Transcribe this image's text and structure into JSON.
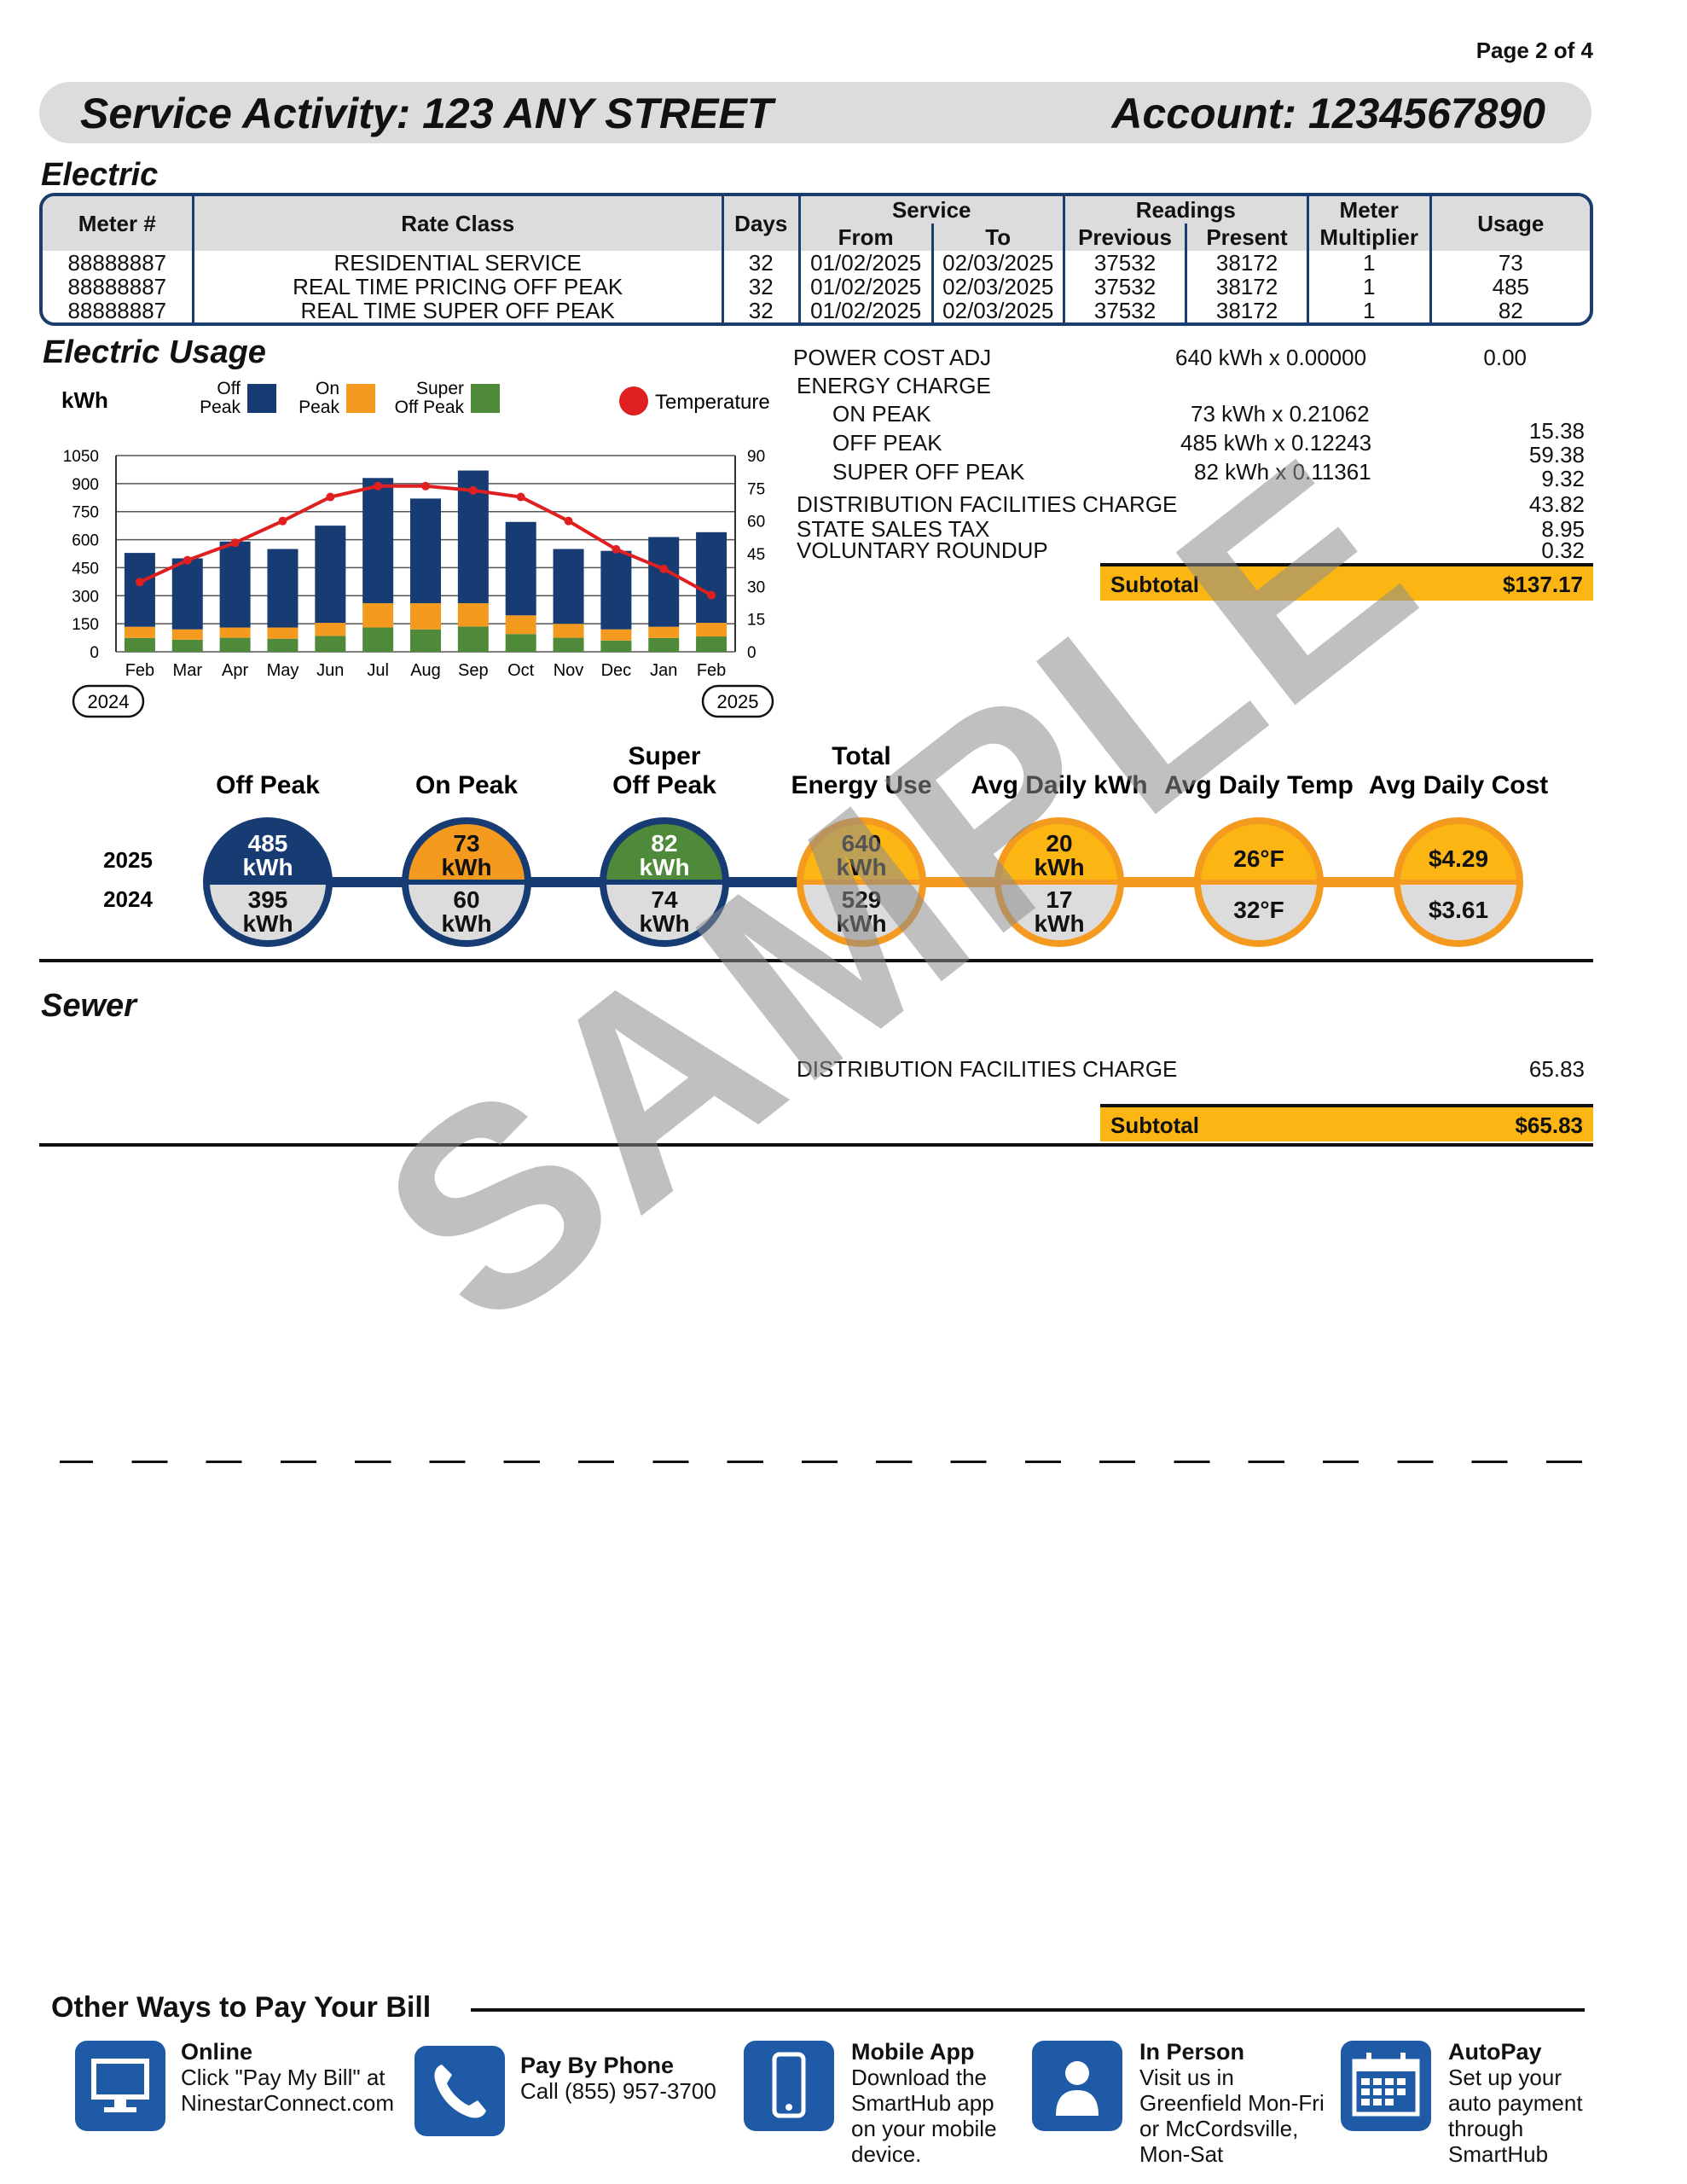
{
  "page": "Page 2 of 4",
  "header": {
    "service": "Service Activity: 123 ANY STREET",
    "account": "Account: 1234567890"
  },
  "electric": {
    "title": "Electric",
    "columns": {
      "meter": "Meter #",
      "rate": "Rate Class",
      "days": "Days",
      "service": "Service",
      "from": "From",
      "to": "To",
      "readings": "Readings",
      "previous": "Previous",
      "present": "Present",
      "meter_mult": "Meter",
      "multiplier": "Multiplier",
      "usage": "Usage"
    },
    "rows": [
      {
        "meter": "88888887",
        "rate": "RESIDENTIAL SERVICE",
        "days": "32",
        "from": "01/02/2025",
        "to": "02/03/2025",
        "previous": "37532",
        "present": "38172",
        "multiplier": "1",
        "usage": "73"
      },
      {
        "meter": "88888887",
        "rate": "REAL TIME PRICING OFF PEAK",
        "days": "32",
        "from": "01/02/2025",
        "to": "02/03/2025",
        "previous": "37532",
        "present": "38172",
        "multiplier": "1",
        "usage": "485"
      },
      {
        "meter": "88888887",
        "rate": "REAL TIME SUPER OFF PEAK",
        "days": "32",
        "from": "01/02/2025",
        "to": "02/03/2025",
        "previous": "37532",
        "present": "38172",
        "multiplier": "1",
        "usage": "82"
      }
    ]
  },
  "usage_title": "Electric Usage",
  "chart_data": {
    "type": "bar",
    "stacked": true,
    "ylabel": "kWh",
    "y2label": "Temperature",
    "categories": [
      "Feb",
      "Mar",
      "Apr",
      "May",
      "Jun",
      "Jul",
      "Aug",
      "Sep",
      "Oct",
      "Nov",
      "Dec",
      "Jan",
      "Feb"
    ],
    "series": [
      {
        "name": "Off Peak",
        "color": "#163c73",
        "values": [
          395,
          380,
          460,
          420,
          520,
          670,
          560,
          710,
          500,
          400,
          420,
          480,
          485
        ]
      },
      {
        "name": "Super Off Peak",
        "color": "#4f8a3a",
        "values": [
          74,
          65,
          75,
          70,
          85,
          130,
          120,
          135,
          95,
          75,
          60,
          74,
          82
        ]
      },
      {
        "name": "On Peak",
        "color": "#f39a1f",
        "values": [
          60,
          55,
          55,
          60,
          70,
          130,
          140,
          125,
          100,
          75,
          60,
          60,
          73
        ]
      }
    ],
    "temperature": {
      "name": "Temperature",
      "color": "#e02020",
      "values": [
        32,
        42,
        50,
        60,
        71,
        76,
        76,
        74,
        71,
        60,
        47,
        38,
        26
      ]
    },
    "ylim": [
      0,
      1050
    ],
    "yticks": [
      "1050",
      "900",
      "750",
      "600",
      "450",
      "300",
      "150",
      "0"
    ],
    "y2lim": [
      0,
      90
    ],
    "y2ticks": [
      "90",
      "75",
      "60",
      "45",
      "30",
      "15",
      "0"
    ],
    "legend": {
      "off": [
        "Off",
        "Peak"
      ],
      "on": [
        "On",
        "Peak"
      ],
      "super": [
        "Super",
        "Off Peak"
      ],
      "temp": "Temperature"
    },
    "year_start": "2024",
    "year_end": "2025"
  },
  "charges": {
    "items": [
      {
        "label": "POWER COST ADJ",
        "detail": "640 kWh  x 0.00000",
        "amount": "0.00"
      },
      {
        "label": "ENERGY CHARGE",
        "detail": "",
        "amount": ""
      },
      {
        "label": "ON PEAK",
        "detail": "73 kWh  x 0.21062",
        "amount": "15.38"
      },
      {
        "label": "OFF PEAK",
        "detail": "485 kWh  x 0.12243",
        "amount": "59.38"
      },
      {
        "label": "SUPER OFF PEAK",
        "detail": "82 kWh  x 0.11361",
        "amount": "9.32"
      },
      {
        "label": "DISTRIBUTION FACILITIES CHARGE",
        "detail": "",
        "amount": "43.82"
      },
      {
        "label": "STATE SALES TAX",
        "detail": "",
        "amount": "8.95"
      },
      {
        "label": "VOLUNTARY ROUNDUP",
        "detail": "",
        "amount": "0.32"
      }
    ],
    "subtotal_label": "Subtotal",
    "subtotal_amount": "$137.17"
  },
  "comparison": {
    "year_current": "2025",
    "year_previous": "2024",
    "items": [
      {
        "title": [
          "",
          "Off Peak"
        ],
        "top": [
          "485",
          "kWh"
        ],
        "bottom": [
          "395",
          "kWh"
        ],
        "color": "#163c73",
        "topfill": "#163c73",
        "toptext": "#ffffff"
      },
      {
        "title": [
          "",
          "On Peak"
        ],
        "top": [
          "73",
          "kWh"
        ],
        "bottom": [
          "60",
          "kWh"
        ],
        "color": "#163c73",
        "topfill": "#f39a1f",
        "toptext": "#111111"
      },
      {
        "title": [
          "Super",
          "Off Peak"
        ],
        "top": [
          "82",
          "kWh"
        ],
        "bottom": [
          "74",
          "kWh"
        ],
        "color": "#163c73",
        "topfill": "#4f8a3a",
        "toptext": "#ffffff"
      },
      {
        "title": [
          "Total",
          "Energy Use"
        ],
        "top": [
          "640",
          "kWh"
        ],
        "bottom": [
          "529",
          "kWh"
        ],
        "color": "#f39a1f",
        "topfill": "#fbb614",
        "toptext": "#111111"
      },
      {
        "title": [
          "",
          "Avg Daily kWh"
        ],
        "top": [
          "20",
          "kWh"
        ],
        "bottom": [
          "17",
          "kWh"
        ],
        "color": "#f39a1f",
        "topfill": "#fbb614",
        "toptext": "#111111"
      },
      {
        "title": [
          "",
          "Avg Daily Temp"
        ],
        "top": [
          "26°F",
          ""
        ],
        "bottom": [
          "32°F",
          ""
        ],
        "color": "#f39a1f",
        "topfill": "#fbb614",
        "toptext": "#111111"
      },
      {
        "title": [
          "",
          "Avg Daily Cost"
        ],
        "top": [
          "$4.29",
          ""
        ],
        "bottom": [
          "$3.61",
          ""
        ],
        "color": "#f39a1f",
        "topfill": "#fbb614",
        "toptext": "#111111"
      }
    ]
  },
  "sewer": {
    "title": "Sewer",
    "label": "DISTRIBUTION FACILITIES CHARGE",
    "amount": "65.83",
    "subtotal_label": "Subtotal",
    "subtotal_amount": "$65.83"
  },
  "watermark": "SAMPLE",
  "pay": {
    "title": "Other Ways to Pay Your Bill",
    "options": [
      {
        "title": "Online",
        "lines": [
          "Click \"Pay My Bill\" at",
          "NinestarConnect.com"
        ],
        "icon": "computer-icon"
      },
      {
        "title": "Pay By Phone",
        "lines": [
          "Call (855) 957-3700"
        ],
        "icon": "phone-icon"
      },
      {
        "title": "Mobile App",
        "lines": [
          "Download the",
          "SmartHub app",
          "on your mobile",
          "device."
        ],
        "icon": "mobile-icon"
      },
      {
        "title": "In Person",
        "lines": [
          "Visit us in",
          "Greenfield Mon-Fri",
          "or McCordsville,",
          "Mon-Sat"
        ],
        "icon": "person-icon"
      },
      {
        "title": "AutoPay",
        "lines": [
          "Set up your",
          "auto payment",
          "through",
          "SmartHub"
        ],
        "icon": "calendar-icon"
      }
    ]
  }
}
